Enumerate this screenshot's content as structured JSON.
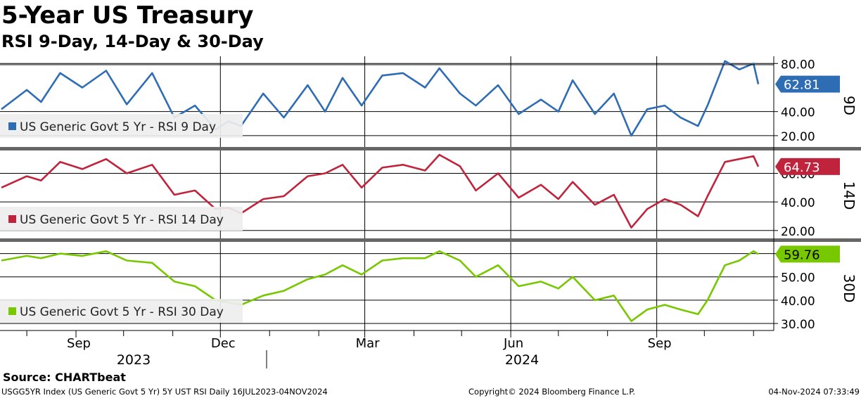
{
  "title": "5-Year US Treasury",
  "subtitle": "RSI 9-Day, 14-Day & 30-Day",
  "footer": {
    "source": "Source: CHARTbeat",
    "meta": "USGG5YR Index (US Generic Govt 5 Yr) 5Y UST RSI  Daily 16JUL2023-04NOV2024",
    "copyright": "Copyright© 2024 Bloomberg Finance L.P.",
    "timestamp": "04-Nov-2024 07:33:49"
  },
  "x_axis": {
    "month_ticks": [
      "Sep",
      "Dec",
      "Mar",
      "Jun",
      "Sep"
    ],
    "year_labels": [
      "2023",
      "2024"
    ]
  },
  "chart_data": [
    {
      "type": "line",
      "panel_tag": "9D",
      "legend": "US Generic Govt 5 Yr - RSI 9 Day",
      "color": "#2e6db4",
      "last_value": "62.81",
      "y_ticks": [
        "20.00",
        "40.00",
        "80.00"
      ],
      "ylim": [
        10,
        86
      ],
      "x": [
        "2023-07-16",
        "2023-08-01",
        "2023-08-10",
        "2023-08-22",
        "2023-09-05",
        "2023-09-20",
        "2023-10-03",
        "2023-10-19",
        "2023-11-02",
        "2023-11-15",
        "2023-11-28",
        "2023-12-06",
        "2023-12-14",
        "2023-12-28",
        "2024-01-10",
        "2024-01-25",
        "2024-02-05",
        "2024-02-16",
        "2024-02-28",
        "2024-03-12",
        "2024-03-25",
        "2024-04-08",
        "2024-04-17",
        "2024-04-30",
        "2024-05-10",
        "2024-05-24",
        "2024-06-06",
        "2024-06-20",
        "2024-07-01",
        "2024-07-10",
        "2024-07-24",
        "2024-08-05",
        "2024-08-16",
        "2024-08-26",
        "2024-09-06",
        "2024-09-16",
        "2024-09-27",
        "2024-10-03",
        "2024-10-14",
        "2024-10-23",
        "2024-11-01",
        "2024-11-04"
      ],
      "values": [
        42,
        58,
        48,
        72,
        60,
        74,
        46,
        72,
        35,
        45,
        25,
        32,
        28,
        55,
        35,
        62,
        40,
        68,
        45,
        70,
        72,
        60,
        76,
        55,
        45,
        62,
        38,
        50,
        40,
        66,
        38,
        55,
        20,
        42,
        45,
        35,
        28,
        45,
        82,
        75,
        80,
        62.81
      ]
    },
    {
      "type": "line",
      "panel_tag": "14D",
      "legend": "US Generic Govt 5 Yr - RSI 14 Day",
      "color": "#c0243c",
      "last_value": "64.73",
      "y_ticks": [
        "20.00",
        "40.00",
        "60.00"
      ],
      "ylim": [
        14,
        76
      ],
      "x": [
        "2023-07-16",
        "2023-08-01",
        "2023-08-10",
        "2023-08-22",
        "2023-09-05",
        "2023-09-20",
        "2023-10-03",
        "2023-10-19",
        "2023-11-02",
        "2023-11-15",
        "2023-11-28",
        "2023-12-06",
        "2023-12-14",
        "2023-12-28",
        "2024-01-10",
        "2024-01-25",
        "2024-02-05",
        "2024-02-16",
        "2024-02-28",
        "2024-03-12",
        "2024-03-25",
        "2024-04-08",
        "2024-04-17",
        "2024-04-30",
        "2024-05-10",
        "2024-05-24",
        "2024-06-06",
        "2024-06-20",
        "2024-07-01",
        "2024-07-10",
        "2024-07-24",
        "2024-08-05",
        "2024-08-16",
        "2024-08-26",
        "2024-09-06",
        "2024-09-16",
        "2024-09-27",
        "2024-10-03",
        "2024-10-14",
        "2024-10-23",
        "2024-11-01",
        "2024-11-04"
      ],
      "values": [
        50,
        58,
        55,
        68,
        63,
        70,
        60,
        66,
        45,
        48,
        35,
        36,
        32,
        42,
        44,
        58,
        60,
        66,
        50,
        64,
        66,
        62,
        73,
        65,
        48,
        60,
        43,
        52,
        42,
        54,
        38,
        45,
        22,
        35,
        42,
        38,
        30,
        44,
        68,
        70,
        72,
        64.73
      ]
    },
    {
      "type": "line",
      "panel_tag": "30D",
      "legend": "US Generic Govt 5 Yr - RSI 30 Day",
      "color": "#78c800",
      "last_value": "59.76",
      "y_ticks": [
        "30.00",
        "40.00",
        "50.00",
        "60.00"
      ],
      "ylim": [
        27,
        65
      ],
      "x": [
        "2023-07-16",
        "2023-08-01",
        "2023-08-10",
        "2023-08-22",
        "2023-09-05",
        "2023-09-20",
        "2023-10-03",
        "2023-10-19",
        "2023-11-02",
        "2023-11-15",
        "2023-11-28",
        "2023-12-06",
        "2023-12-14",
        "2023-12-28",
        "2024-01-10",
        "2024-01-25",
        "2024-02-05",
        "2024-02-16",
        "2024-02-28",
        "2024-03-12",
        "2024-03-25",
        "2024-04-08",
        "2024-04-17",
        "2024-04-30",
        "2024-05-10",
        "2024-05-24",
        "2024-06-06",
        "2024-06-20",
        "2024-07-01",
        "2024-07-10",
        "2024-07-24",
        "2024-08-05",
        "2024-08-16",
        "2024-08-26",
        "2024-09-06",
        "2024-09-16",
        "2024-09-27",
        "2024-10-03",
        "2024-10-14",
        "2024-10-23",
        "2024-11-01",
        "2024-11-04"
      ],
      "values": [
        57,
        59,
        58,
        60,
        59,
        61,
        57,
        56,
        48,
        46,
        40,
        39,
        38,
        42,
        44,
        49,
        51,
        55,
        51,
        57,
        58,
        58,
        61,
        57,
        50,
        55,
        46,
        48,
        45,
        50,
        40,
        42,
        31,
        36,
        38,
        36,
        34,
        40,
        55,
        57,
        61,
        59.76
      ]
    }
  ]
}
